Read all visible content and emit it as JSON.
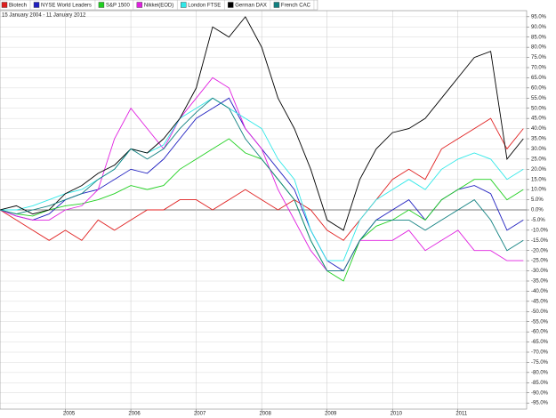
{
  "chart_data": {
    "type": "line",
    "subtitle": "15 January 2004 - 11 January 2012",
    "x": [
      2004.0,
      2004.25,
      2004.5,
      2004.75,
      2005.0,
      2005.25,
      2005.5,
      2005.75,
      2006.0,
      2006.25,
      2006.5,
      2006.75,
      2007.0,
      2007.25,
      2007.5,
      2007.75,
      2008.0,
      2008.25,
      2008.5,
      2008.75,
      2009.0,
      2009.25,
      2009.5,
      2009.75,
      2010.0,
      2010.25,
      2010.5,
      2010.75,
      2011.0,
      2011.25,
      2011.5,
      2011.75,
      2012.0
    ],
    "series": [
      {
        "name": "Biotech",
        "color": "#e02020",
        "values": [
          0,
          -5,
          -10,
          -15,
          -10,
          -15,
          -5,
          -10,
          -5,
          0,
          0,
          5,
          5,
          0,
          5,
          10,
          5,
          0,
          5,
          0,
          -10,
          -15,
          -5,
          5,
          15,
          20,
          15,
          30,
          35,
          40,
          45,
          30,
          40
        ]
      },
      {
        "name": "NYSE World Leaders",
        "color": "#2020c0",
        "values": [
          0,
          -3,
          -5,
          -2,
          5,
          8,
          10,
          15,
          20,
          18,
          25,
          35,
          45,
          50,
          55,
          40,
          30,
          20,
          10,
          -10,
          -25,
          -30,
          -15,
          -5,
          0,
          5,
          -5,
          5,
          10,
          12,
          8,
          -10,
          -5
        ]
      },
      {
        "name": "S&P 1500",
        "color": "#20d020",
        "values": [
          0,
          -2,
          -3,
          0,
          2,
          3,
          5,
          8,
          12,
          10,
          12,
          20,
          25,
          30,
          35,
          28,
          25,
          15,
          5,
          -15,
          -30,
          -35,
          -15,
          -8,
          -5,
          0,
          -5,
          5,
          10,
          15,
          15,
          5,
          10
        ]
      },
      {
        "name": "Nikkei(EOD)",
        "color": "#e020e0",
        "values": [
          0,
          -3,
          -5,
          -5,
          0,
          2,
          10,
          35,
          50,
          40,
          30,
          45,
          55,
          65,
          60,
          40,
          30,
          10,
          -5,
          -20,
          -30,
          -30,
          -15,
          -15,
          -15,
          -10,
          -20,
          -15,
          -10,
          -20,
          -20,
          -25,
          -25
        ]
      },
      {
        "name": "London FTSE",
        "color": "#30e8e8",
        "values": [
          0,
          0,
          2,
          5,
          8,
          10,
          15,
          20,
          30,
          28,
          32,
          45,
          50,
          55,
          50,
          45,
          40,
          25,
          15,
          -10,
          -25,
          -25,
          -5,
          5,
          10,
          15,
          10,
          20,
          25,
          28,
          25,
          15,
          20
        ]
      },
      {
        "name": "German DAX",
        "color": "#000000",
        "values": [
          0,
          2,
          -2,
          0,
          8,
          12,
          18,
          22,
          30,
          28,
          35,
          45,
          60,
          90,
          85,
          95,
          80,
          55,
          40,
          20,
          -5,
          -10,
          15,
          30,
          38,
          40,
          45,
          55,
          65,
          75,
          78,
          25,
          35
        ]
      },
      {
        "name": "French CAC",
        "color": "#108080",
        "values": [
          0,
          -2,
          0,
          2,
          5,
          8,
          15,
          20,
          30,
          25,
          30,
          40,
          48,
          55,
          50,
          35,
          25,
          15,
          5,
          -15,
          -30,
          -30,
          -15,
          -5,
          -5,
          -5,
          -10,
          -5,
          0,
          5,
          -5,
          -20,
          -15
        ]
      }
    ],
    "xlim": [
      2004.0,
      2012.05
    ],
    "xticks": [
      2005,
      2006,
      2007,
      2008,
      2009,
      2010,
      2011
    ],
    "ylim": [
      -98,
      98
    ],
    "yticks": [
      {
        "value": 95,
        "label": "95.0%"
      },
      {
        "value": 90,
        "label": "90.0%"
      },
      {
        "value": 85,
        "label": "85.0%"
      },
      {
        "value": 80,
        "label": "80.0%"
      },
      {
        "value": 75,
        "label": "75.0%"
      },
      {
        "value": 70,
        "label": "70.0%"
      },
      {
        "value": 65,
        "label": "65.0%"
      },
      {
        "value": 60,
        "label": "60.0%"
      },
      {
        "value": 55,
        "label": "55.0%"
      },
      {
        "value": 50,
        "label": "50.0%"
      },
      {
        "value": 45,
        "label": "45.0%"
      },
      {
        "value": 40,
        "label": "40.0%"
      },
      {
        "value": 35,
        "label": "35.0%"
      },
      {
        "value": 30,
        "label": "30.0%"
      },
      {
        "value": 25,
        "label": "25.0%"
      },
      {
        "value": 20,
        "label": "20.0%"
      },
      {
        "value": 15,
        "label": "15.0%"
      },
      {
        "value": 10,
        "label": "10.0%"
      },
      {
        "value": 5,
        "label": "5.0%"
      },
      {
        "value": 0,
        "label": "0.0%"
      },
      {
        "value": -5,
        "label": "-5.0%"
      },
      {
        "value": -10,
        "label": "-10.0%"
      },
      {
        "value": -15,
        "label": "-15.0%"
      },
      {
        "value": -20,
        "label": "-20.0%"
      },
      {
        "value": -25,
        "label": "-25.0%"
      },
      {
        "value": -30,
        "label": "-30.0%"
      },
      {
        "value": -35,
        "label": "-35.0%"
      },
      {
        "value": -40,
        "label": "-40.0%"
      },
      {
        "value": -45,
        "label": "-45.0%"
      },
      {
        "value": -50,
        "label": "-50.0%"
      },
      {
        "value": -55,
        "label": "-55.0%"
      },
      {
        "value": -60,
        "label": "-60.0%"
      },
      {
        "value": -65,
        "label": "-65.0%"
      },
      {
        "value": -70,
        "label": "-70.0%"
      },
      {
        "value": -75,
        "label": "-75.0%"
      },
      {
        "value": -80,
        "label": "-80.0%"
      },
      {
        "value": -85,
        "label": "-85.0%"
      },
      {
        "value": -90,
        "label": "-90.0%"
      },
      {
        "value": -95,
        "label": "-95.0%"
      }
    ],
    "grid": true,
    "legend": "top-left"
  }
}
